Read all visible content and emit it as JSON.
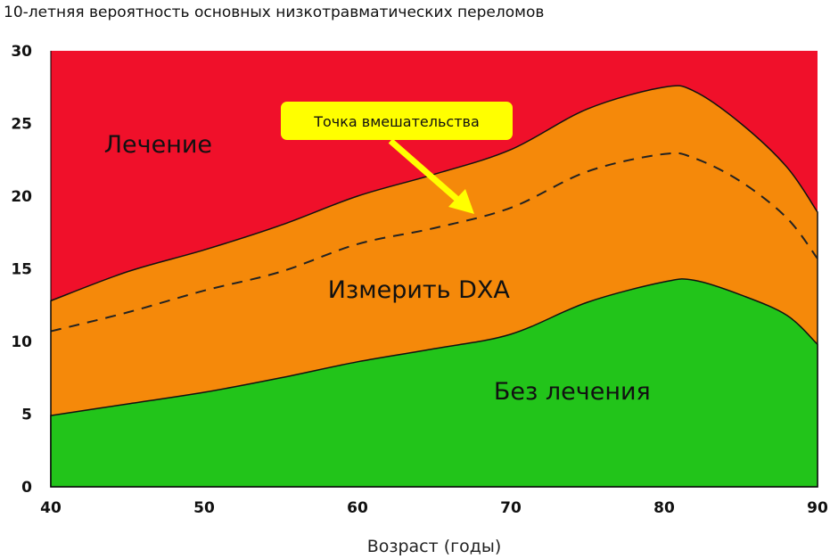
{
  "chart_data": {
    "type": "area",
    "title": "10-летняя вероятность основных низкотравматических переломов",
    "xlabel": "Возраст (годы)",
    "ylabel": "",
    "xlim": [
      40,
      90
    ],
    "ylim": [
      0,
      30
    ],
    "xticks": [
      "40",
      "50",
      "60",
      "70",
      "80",
      "90"
    ],
    "yticks": [
      "0",
      "5",
      "10",
      "15",
      "20",
      "25",
      "30"
    ],
    "x": [
      40,
      45,
      50,
      55,
      60,
      65,
      70,
      75,
      80,
      82,
      85,
      88,
      90
    ],
    "series": [
      {
        "name": "Без лечения",
        "color": "#22C41A",
        "values": [
          4.9,
          5.7,
          6.5,
          7.5,
          8.6,
          9.5,
          10.5,
          12.7,
          14.1,
          14.2,
          13.2,
          11.8,
          9.8
        ]
      },
      {
        "name": "Измерить DXA",
        "color": "#F5890A",
        "values": [
          12.8,
          14.8,
          16.3,
          18.0,
          20.0,
          21.5,
          23.2,
          26.0,
          27.5,
          27.2,
          25.0,
          22.0,
          18.9
        ]
      },
      {
        "name": "Лечение",
        "color": "#F0102A",
        "values": [
          30,
          30,
          30,
          30,
          30,
          30,
          30,
          30,
          30,
          30,
          30,
          30,
          30
        ]
      }
    ],
    "threshold": {
      "name": "Точка вмешательства",
      "values": [
        10.7,
        12.0,
        13.5,
        14.8,
        16.7,
        17.8,
        19.2,
        21.7,
        22.9,
        22.6,
        21.0,
        18.5,
        15.7
      ]
    },
    "region_labels": [
      {
        "text": "Лечение",
        "x": 47,
        "y": 23
      },
      {
        "text": "Измерить DXA",
        "x": 64,
        "y": 13
      },
      {
        "text": "Без лечения",
        "x": 74,
        "y": 6
      }
    ],
    "annotation": {
      "text": "Точка вмешательства",
      "color": "#FFFF00"
    }
  }
}
